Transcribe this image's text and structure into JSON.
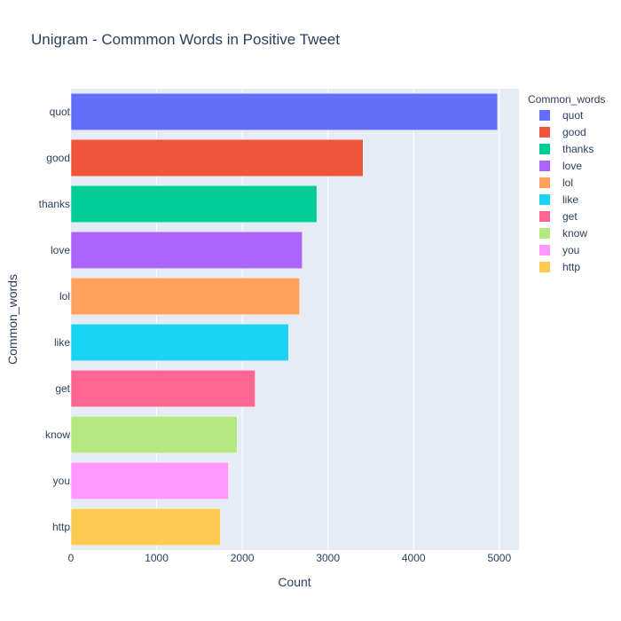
{
  "chart_data": {
    "type": "bar",
    "orientation": "horizontal",
    "title": "Unigram - Commmon Words in Positive Tweet",
    "xlabel": "Count",
    "ylabel": "Common_words",
    "legend_title": "Common_words",
    "legend_position": "right",
    "grid": true,
    "xlim": [
      0,
      5230
    ],
    "xticks": [
      0,
      1000,
      2000,
      3000,
      4000,
      5000
    ],
    "categories": [
      "quot",
      "good",
      "thanks",
      "love",
      "lol",
      "like",
      "get",
      "know",
      "you",
      "http"
    ],
    "values": [
      4980,
      3410,
      2870,
      2700,
      2670,
      2540,
      2150,
      1940,
      1840,
      1745
    ],
    "colors": [
      "#636efa",
      "#EF553B",
      "#00cc96",
      "#ab63fa",
      "#FFA15A",
      "#19d3f3",
      "#FF6692",
      "#B6E880",
      "#FF97FF",
      "#FECB52"
    ],
    "plot_background": "#e5ecf6",
    "gridline_color": "#ffffff",
    "text_color": "#2a3f5f"
  }
}
